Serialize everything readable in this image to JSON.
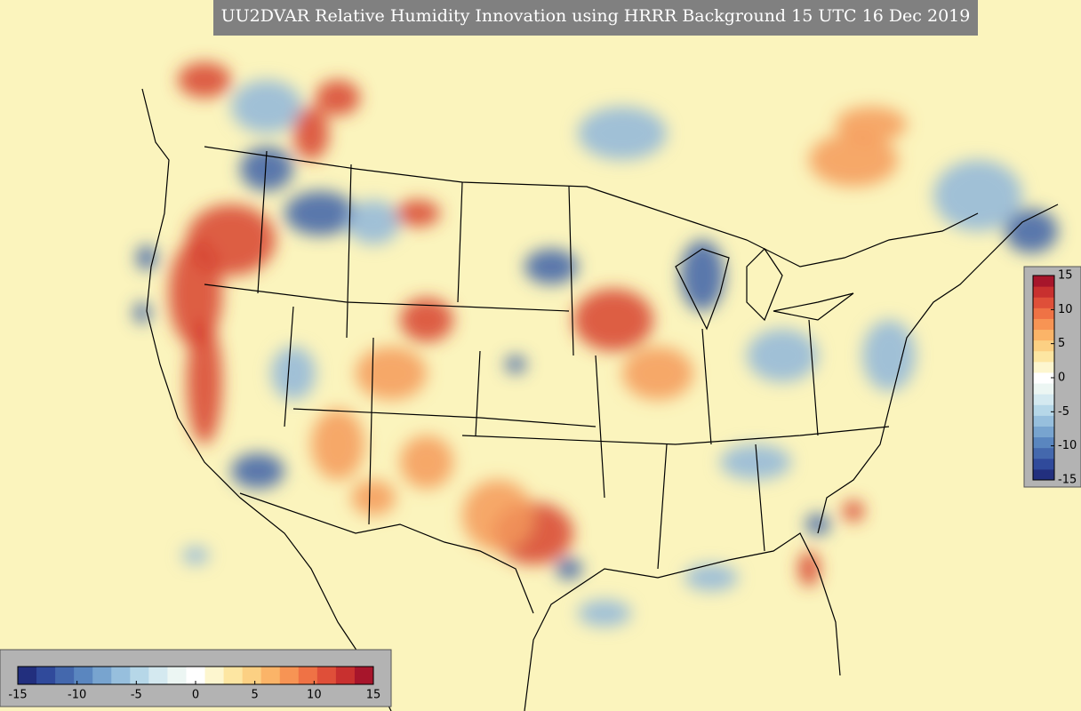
{
  "title": "UU2DVAR Relative Humidity Innovation using HRRR Background 15 UTC 16 Dec 2019",
  "colorbar_right": {
    "range": [
      -15,
      15
    ],
    "ticks": [
      15,
      10,
      5,
      0,
      -5,
      -10,
      -15
    ]
  },
  "colorbar_bottom": {
    "range": [
      -15,
      15
    ],
    "ticks": [
      -15,
      -10,
      -5,
      0,
      5,
      10,
      15
    ]
  },
  "colormap": [
    "#222f7e",
    "#304a9b",
    "#4468ad",
    "#5a86bf",
    "#78a4cf",
    "#97bfdd",
    "#b6d7e8",
    "#d4e9f0",
    "#ecf6f3",
    "#ffffff",
    "#fdf6cf",
    "#fde6a2",
    "#fcd083",
    "#fbb468",
    "#f79454",
    "#ef7245",
    "#df4f39",
    "#c8302f",
    "#a7152b"
  ]
}
